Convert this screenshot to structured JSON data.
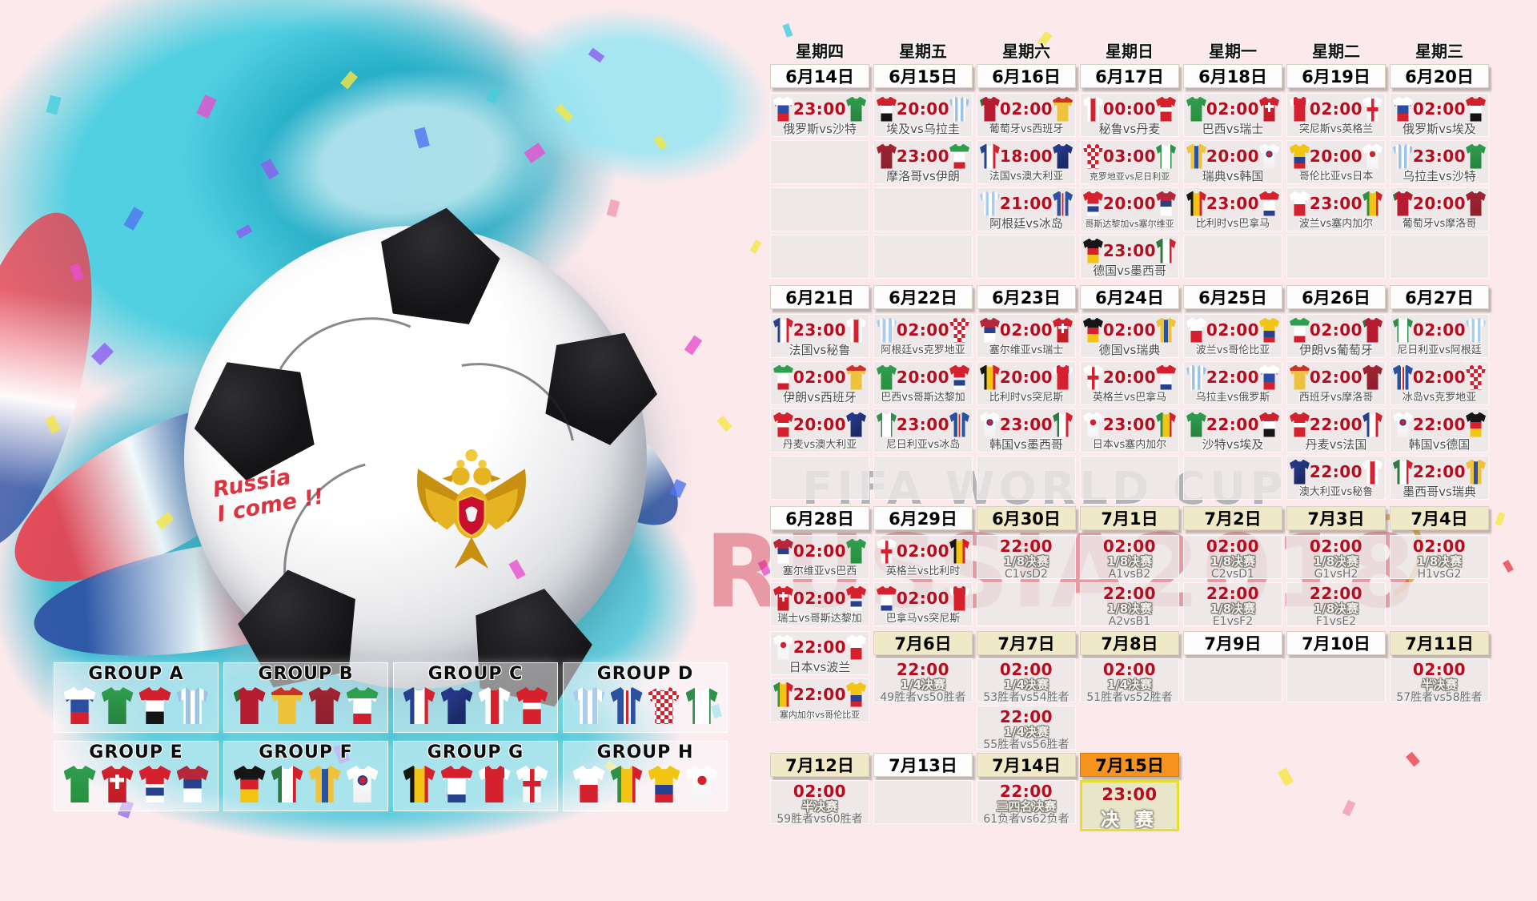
{
  "watermarks": {
    "line1": "FIFA WORLD CUP",
    "line2": "RUSSIA2018"
  },
  "ball_note": "Russia\nI come !!",
  "colors": {
    "background_pink": "#fbe9ec",
    "time_red": "#b50d20",
    "header_white": "#fdfdfd",
    "header_cream": "#efe9c8",
    "header_orange": "#f6921e",
    "final_border_yellow": "#e6df2b",
    "art_teal": "#48cee0",
    "watermark_red": "rgba(206,34,58,0.40)"
  },
  "weekdays": [
    "星期四",
    "星期五",
    "星期六",
    "星期日",
    "星期一",
    "星期二",
    "星期三"
  ],
  "kits": {
    "俄罗斯": "linear-gradient(to bottom,#ffffff 34%,#2b4ea2 34% 67%,#d5212e 67%)",
    "沙特": "linear-gradient(to bottom,#2f9e4e,#27823f)",
    "埃及": "linear-gradient(to bottom,#d02030 36%,#ffffff 36% 66%,#151515 66%)",
    "乌拉圭": "repeating-linear-gradient(90deg,#9cc3e6 0 14%,#ffffff 14% 28%)",
    "摩洛哥": "linear-gradient(to bottom,#a02432,#8c1f2c)",
    "伊朗": "linear-gradient(to bottom,#2f9e4e 30%,#ffffff 30% 72%,#d02030 72%)",
    "葡萄牙": "linear-gradient(90deg,#27703a 16%,#b51c31 16%)",
    "西班牙": "linear-gradient(to bottom,#c93226 22%,#efc23c 22%)",
    "法国": "linear-gradient(90deg,#27418f 34%,#ffffff 34% 66%,#d5212e 66%)",
    "澳大利亚": "linear-gradient(135deg,#253786 30%,#1c2a68 70%)",
    "阿根廷": "repeating-linear-gradient(90deg,#a9cdec 0 15%,#ffffff 15% 30%)",
    "冰岛": "linear-gradient(90deg,#2a52a0 40%,#ffffff 40% 47%,#d5212e 47% 55%,#ffffff 55% 62%,#2a52a0 62%)",
    "秘鲁": "linear-gradient(90deg,#ffffff 38%,#d5212e 38% 62%,#ffffff 62%)",
    "丹麦": "linear-gradient(to bottom,#d5212e 42%,#ffffff 42% 60%,#d5212e 60%)",
    "克罗地亚": "repeating-conic-gradient(#d5212e 0% 25%, #ffffff 0% 50%) 0 0/10px 10px",
    "尼日利亚": "linear-gradient(90deg,#2e9049 28%,#ffffff 28% 72%,#2e9049 72%)",
    "哥斯达黎加": "linear-gradient(to bottom,#d5212e 50%,#ffffff 50% 60%,#27418f 60% 82%,#ffffff 82%)",
    "塞尔维亚": "linear-gradient(to bottom,#b5283b 38%,#27418f 38% 62%,#ffffff 62%)",
    "德国": "linear-gradient(to bottom,#161616 38%,#d5212e 38% 64%,#f2c514 64%)",
    "墨西哥": "linear-gradient(90deg,#2e7a42 33%,#ffffff 33% 67%,#d5212e 67%)",
    "巴西": "linear-gradient(to bottom,#2f9e4e,#27903f)",
    "瑞士": "linear-gradient(#ffffff,#ffffff) 50% 38%/46% 12% no-repeat, linear-gradient(#ffffff,#ffffff) 50% 40%/12% 40% no-repeat, linear-gradient(#d5212e,#c21b27)",
    "瑞典": "linear-gradient(90deg,#efc23c 40%,#2a52a0 40% 60%,#efc23c 60%)",
    "韩国": "radial-gradient(circle at 50% 40%,#d5212e 0 12%,#27418f 12% 18%,rgba(0,0,0,0) 19%), linear-gradient(#ffffff,#f0f0f0)",
    "比利时": "linear-gradient(90deg,#161616 34%,#f2c514 34% 66%,#d5212e 66%)",
    "巴拿马": "linear-gradient(to bottom,#d5212e 34%,#ffffff 34% 78%,#27418f 78%)",
    "突尼斯": "linear-gradient(90deg,#ffffff 20%,#d5212e 20% 80%,#ffffff 80%)",
    "英格兰": "linear-gradient(#d5212e,#d5212e) 50% 50%/100% 16% no-repeat, linear-gradient(#d5212e,#d5212e) 50% 50%/14% 100% no-repeat, linear-gradient(#ffffff,#f4f4f4)",
    "波兰": "linear-gradient(to bottom,#ffffff 52%,#d5212e 52%)",
    "塞内加尔": "linear-gradient(90deg,#2e9049 33%,#f2c514 33% 67%,#d5212e 67%)",
    "哥伦比亚": "linear-gradient(to bottom,#f2c514 52%,#27418f 52% 78%,#d5212e 78%)",
    "日本": "radial-gradient(circle at 50% 40%,#d5212e 0 16%,rgba(0,0,0,0) 17%), linear-gradient(#ffffff,#f4f4f4)"
  },
  "weeks": [
    {
      "dates": [
        {
          "t": "6月14日",
          "c": "w"
        },
        {
          "t": "6月15日",
          "c": "w"
        },
        {
          "t": "6月16日",
          "c": "w"
        },
        {
          "t": "6月17日",
          "c": "w"
        },
        {
          "t": "6月18日",
          "c": "w"
        },
        {
          "t": "6月19日",
          "c": "w"
        },
        {
          "t": "6月20日",
          "c": "w"
        }
      ],
      "rows": [
        [
          {
            "type": "match",
            "time": "23:00",
            "home": "俄罗斯",
            "away": "沙特"
          },
          {
            "type": "match",
            "time": "20:00",
            "home": "埃及",
            "away": "乌拉圭"
          },
          {
            "type": "match",
            "time": "02:00",
            "home": "葡萄牙",
            "away": "西班牙"
          },
          {
            "type": "match",
            "time": "00:00",
            "home": "秘鲁",
            "away": "丹麦"
          },
          {
            "type": "match",
            "time": "02:00",
            "home": "巴西",
            "away": "瑞士"
          },
          {
            "type": "match",
            "time": "02:00",
            "home": "突尼斯",
            "away": "英格兰"
          },
          {
            "type": "match",
            "time": "02:00",
            "home": "俄罗斯",
            "away": "埃及"
          }
        ],
        [
          {
            "type": "empty"
          },
          {
            "type": "match",
            "time": "23:00",
            "home": "摩洛哥",
            "away": "伊朗"
          },
          {
            "type": "match",
            "time": "18:00",
            "home": "法国",
            "away": "澳大利亚"
          },
          {
            "type": "match",
            "time": "03:00",
            "home": "克罗地亚",
            "away": "尼日利亚"
          },
          {
            "type": "match",
            "time": "20:00",
            "home": "瑞典",
            "away": "韩国"
          },
          {
            "type": "match",
            "time": "20:00",
            "home": "哥伦比亚",
            "away": "日本"
          },
          {
            "type": "match",
            "time": "23:00",
            "home": "乌拉圭",
            "away": "沙特"
          }
        ],
        [
          {
            "type": "empty"
          },
          {
            "type": "empty"
          },
          {
            "type": "match",
            "time": "21:00",
            "home": "阿根廷",
            "away": "冰岛"
          },
          {
            "type": "match",
            "time": "20:00",
            "home": "哥斯达黎加",
            "away": "塞尔维亚"
          },
          {
            "type": "match",
            "time": "23:00",
            "home": "比利时",
            "away": "巴拿马"
          },
          {
            "type": "match",
            "time": "23:00",
            "home": "波兰",
            "away": "塞内加尔"
          },
          {
            "type": "match",
            "time": "20:00",
            "home": "葡萄牙",
            "away": "摩洛哥"
          }
        ],
        [
          {
            "type": "empty"
          },
          {
            "type": "empty"
          },
          {
            "type": "empty"
          },
          {
            "type": "match",
            "time": "23:00",
            "home": "德国",
            "away": "墨西哥"
          },
          {
            "type": "empty"
          },
          {
            "type": "empty"
          },
          {
            "type": "empty"
          }
        ]
      ]
    },
    {
      "dates": [
        {
          "t": "6月21日",
          "c": "w"
        },
        {
          "t": "6月22日",
          "c": "w"
        },
        {
          "t": "6月23日",
          "c": "w"
        },
        {
          "t": "6月24日",
          "c": "w"
        },
        {
          "t": "6月25日",
          "c": "w"
        },
        {
          "t": "6月26日",
          "c": "w"
        },
        {
          "t": "6月27日",
          "c": "w"
        }
      ],
      "rows": [
        [
          {
            "type": "match",
            "time": "23:00",
            "home": "法国",
            "away": "秘鲁"
          },
          {
            "type": "match",
            "time": "02:00",
            "home": "阿根廷",
            "away": "克罗地亚"
          },
          {
            "type": "match",
            "time": "02:00",
            "home": "塞尔维亚",
            "away": "瑞士"
          },
          {
            "type": "match",
            "time": "02:00",
            "home": "德国",
            "away": "瑞典"
          },
          {
            "type": "match",
            "time": "02:00",
            "home": "波兰",
            "away": "哥伦比亚"
          },
          {
            "type": "match",
            "time": "02:00",
            "home": "伊朗",
            "away": "葡萄牙"
          },
          {
            "type": "match",
            "time": "02:00",
            "home": "尼日利亚",
            "away": "阿根廷"
          }
        ],
        [
          {
            "type": "match",
            "time": "02:00",
            "home": "伊朗",
            "away": "西班牙"
          },
          {
            "type": "match",
            "time": "20:00",
            "home": "巴西",
            "away": "哥斯达黎加"
          },
          {
            "type": "match",
            "time": "20:00",
            "home": "比利时",
            "away": "突尼斯"
          },
          {
            "type": "match",
            "time": "20:00",
            "home": "英格兰",
            "away": "巴拿马"
          },
          {
            "type": "match",
            "time": "22:00",
            "home": "乌拉圭",
            "away": "俄罗斯"
          },
          {
            "type": "match",
            "time": "02:00",
            "home": "西班牙",
            "away": "摩洛哥"
          },
          {
            "type": "match",
            "time": "02:00",
            "home": "冰岛",
            "away": "克罗地亚"
          }
        ],
        [
          {
            "type": "match",
            "time": "20:00",
            "home": "丹麦",
            "away": "澳大利亚"
          },
          {
            "type": "match",
            "time": "23:00",
            "home": "尼日利亚",
            "away": "冰岛"
          },
          {
            "type": "match",
            "time": "23:00",
            "home": "韩国",
            "away": "墨西哥"
          },
          {
            "type": "match",
            "time": "23:00",
            "home": "日本",
            "away": "塞内加尔"
          },
          {
            "type": "match",
            "time": "22:00",
            "home": "沙特",
            "away": "埃及"
          },
          {
            "type": "match",
            "time": "22:00",
            "home": "丹麦",
            "away": "法国"
          },
          {
            "type": "match",
            "time": "22:00",
            "home": "韩国",
            "away": "德国"
          }
        ],
        [
          {
            "type": "empty"
          },
          {
            "type": "empty"
          },
          {
            "type": "empty"
          },
          {
            "type": "empty"
          },
          {
            "type": "empty"
          },
          {
            "type": "match",
            "time": "22:00",
            "home": "澳大利亚",
            "away": "秘鲁"
          },
          {
            "type": "match",
            "time": "22:00",
            "home": "墨西哥",
            "away": "瑞典"
          }
        ]
      ]
    },
    {
      "dates": [
        {
          "t": "6月28日",
          "c": "w"
        },
        {
          "t": "6月29日",
          "c": "w"
        },
        {
          "t": "6月30日",
          "c": "c"
        },
        {
          "t": "7月1日",
          "c": "c"
        },
        {
          "t": "7月2日",
          "c": "c"
        },
        {
          "t": "7月3日",
          "c": "c"
        },
        {
          "t": "7月4日",
          "c": "c"
        }
      ],
      "rows": [
        [
          {
            "type": "match",
            "time": "02:00",
            "home": "塞尔维亚",
            "away": "巴西"
          },
          {
            "type": "match",
            "time": "02:00",
            "home": "英格兰",
            "away": "比利时"
          },
          {
            "type": "ko",
            "time": "22:00",
            "stage": "1/8决赛",
            "pair": "C1vsD2"
          },
          {
            "type": "ko",
            "time": "02:00",
            "stage": "1/8决赛",
            "pair": "A1vsB2"
          },
          {
            "type": "ko",
            "time": "02:00",
            "stage": "1/8决赛",
            "pair": "C2vsD1"
          },
          {
            "type": "ko",
            "time": "02:00",
            "stage": "1/8决赛",
            "pair": "G1vsH2"
          },
          {
            "type": "ko",
            "time": "02:00",
            "stage": "1/8决赛",
            "pair": "H1vsG2"
          }
        ],
        [
          {
            "type": "match",
            "time": "02:00",
            "home": "瑞士",
            "away": "哥斯达黎加"
          },
          {
            "type": "match",
            "time": "02:00",
            "home": "巴拿马",
            "away": "突尼斯"
          },
          {
            "type": "empty"
          },
          {
            "type": "ko",
            "time": "22:00",
            "stage": "1/8决赛",
            "pair": "A2vsB1"
          },
          {
            "type": "ko",
            "time": "22:00",
            "stage": "1/8决赛",
            "pair": "E1vsF2"
          },
          {
            "type": "ko",
            "time": "22:00",
            "stage": "1/8决赛",
            "pair": "F1vsE2"
          },
          {
            "type": "empty"
          }
        ]
      ]
    },
    {
      "dates": [
        null,
        {
          "t": "7月6日",
          "c": "c"
        },
        {
          "t": "7月7日",
          "c": "c"
        },
        {
          "t": "7月8日",
          "c": "c"
        },
        {
          "t": "7月9日",
          "c": "w"
        },
        {
          "t": "7月10日",
          "c": "w"
        },
        {
          "t": "7月11日",
          "c": "c"
        }
      ],
      "col0": [
        {
          "type": "match",
          "time": "22:00",
          "home": "日本",
          "away": "波兰"
        },
        {
          "type": "match",
          "time": "22:00",
          "home": "塞内加尔",
          "away": "哥伦比亚"
        }
      ],
      "rows": [
        [
          {
            "type": "none"
          },
          {
            "type": "ko",
            "time": "22:00",
            "stage": "1/4决赛",
            "pair": "49胜者vs50胜者"
          },
          {
            "type": "ko",
            "time": "02:00",
            "stage": "1/4决赛",
            "pair": "53胜者vs54胜者"
          },
          {
            "type": "ko",
            "time": "02:00",
            "stage": "1/4决赛",
            "pair": "51胜者vs52胜者"
          },
          {
            "type": "empty"
          },
          {
            "type": "empty"
          },
          {
            "type": "ko",
            "time": "02:00",
            "stage": "半决赛",
            "pair": "57胜者vs58胜者"
          }
        ],
        [
          {
            "type": "none"
          },
          {
            "type": "none"
          },
          {
            "type": "ko",
            "time": "22:00",
            "stage": "1/4决赛",
            "pair": "55胜者vs56胜者"
          },
          {
            "type": "none"
          },
          {
            "type": "none"
          },
          {
            "type": "none"
          },
          {
            "type": "none"
          }
        ]
      ]
    },
    {
      "dates": [
        {
          "t": "7月12日",
          "c": "c"
        },
        {
          "t": "7月13日",
          "c": "w"
        },
        {
          "t": "7月14日",
          "c": "c"
        },
        {
          "t": "7月15日",
          "c": "o"
        },
        null,
        null,
        null
      ],
      "rows": [
        [
          {
            "type": "ko",
            "time": "02:00",
            "stage": "半决赛",
            "pair": "59胜者vs60胜者"
          },
          {
            "type": "empty"
          },
          {
            "type": "ko",
            "time": "22:00",
            "stage": "三四名决赛",
            "pair": "61负者vs62负者"
          },
          {
            "type": "final",
            "time": "23:00",
            "label": "决 赛"
          },
          {
            "type": "none"
          },
          {
            "type": "none"
          },
          {
            "type": "none"
          }
        ]
      ]
    }
  ],
  "groups": [
    {
      "label": "GROUP A",
      "teams": [
        "俄罗斯",
        "沙特",
        "埃及",
        "乌拉圭"
      ]
    },
    {
      "label": "GROUP B",
      "teams": [
        "葡萄牙",
        "西班牙",
        "摩洛哥",
        "伊朗"
      ]
    },
    {
      "label": "GROUP C",
      "teams": [
        "法国",
        "澳大利亚",
        "秘鲁",
        "丹麦"
      ]
    },
    {
      "label": "GROUP D",
      "teams": [
        "阿根廷",
        "冰岛",
        "克罗地亚",
        "尼日利亚"
      ]
    },
    {
      "label": "GROUP E",
      "teams": [
        "巴西",
        "瑞士",
        "哥斯达黎加",
        "塞尔维亚"
      ]
    },
    {
      "label": "GROUP F",
      "teams": [
        "德国",
        "墨西哥",
        "瑞典",
        "韩国"
      ]
    },
    {
      "label": "GROUP G",
      "teams": [
        "比利时",
        "巴拿马",
        "突尼斯",
        "英格兰"
      ]
    },
    {
      "label": "GROUP H",
      "teams": [
        "波兰",
        "塞内加尔",
        "哥伦比亚",
        "日本"
      ]
    }
  ]
}
